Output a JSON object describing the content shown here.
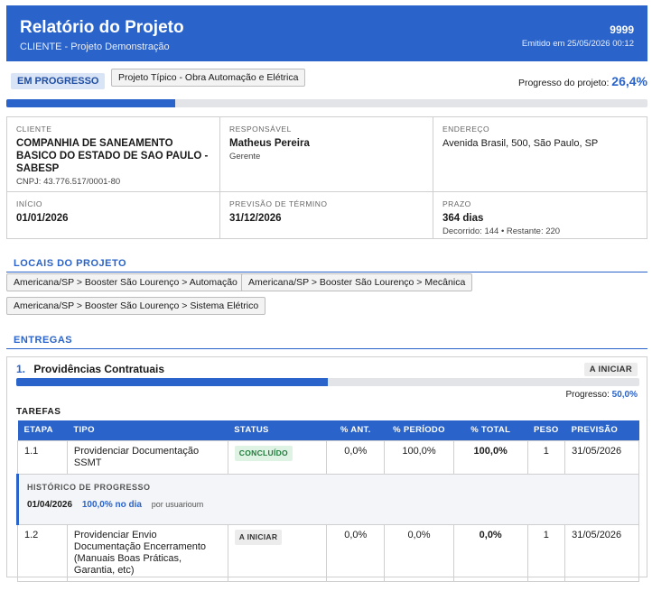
{
  "header": {
    "title": "Relatório do Projeto",
    "subtitle": "CLIENTE - Projeto Demonstração",
    "code": "9999",
    "emitted": "Emitido em 25/05/2026 00:12"
  },
  "status": {
    "badge": "EM PROGRESSO",
    "type_tag": "Projeto Típico - Obra Automação e Elétrica",
    "progress_label": "Progresso do projeto:",
    "progress_value": "26,4%",
    "progress_fraction": 0.264
  },
  "info": {
    "cliente": {
      "label": "CLIENTE",
      "name": "COMPANHIA DE SANEAMENTO BASICO DO ESTADO DE SAO PAULO - SABESP",
      "cnpj": "CNPJ: 43.776.517/0001-80"
    },
    "responsavel": {
      "label": "RESPONSÁVEL",
      "name": "Matheus Pereira",
      "role": "Gerente"
    },
    "endereco": {
      "label": "ENDEREÇO",
      "value": "Avenida Brasil, 500, São Paulo, SP"
    },
    "inicio": {
      "label": "INÍCIO",
      "value": "01/01/2026"
    },
    "previsao": {
      "label": "PREVISÃO DE TÉRMINO",
      "value": "31/12/2026"
    },
    "prazo": {
      "label": "PRAZO",
      "value": "364 dias",
      "detail": "Decorrido: 144  •  Restante: 220"
    }
  },
  "locais": {
    "title": "LOCAIS DO PROJETO",
    "items": [
      "Americana/SP > Booster São Lourenço > Automação",
      "Americana/SP > Booster São Lourenço > Mecânica",
      "Americana/SP > Booster São Lourenço > Sistema Elétrico"
    ]
  },
  "entregas": {
    "title": "ENTREGAS",
    "items": [
      {
        "num": "1.",
        "name": "Providências Contratuais",
        "badge": "A INICIAR",
        "progress_label": "Progresso:",
        "progress_value": "50,0%",
        "progress_fraction": 0.5,
        "tasks_title": "TAREFAS",
        "columns": [
          "ETAPA",
          "TIPO",
          "STATUS",
          "% ANT.",
          "% PERÍODO",
          "% TOTAL",
          "PESO",
          "PREVISÃO"
        ],
        "tasks": [
          {
            "etapa": "1.1",
            "tipo": "Providenciar Documentação SSMT",
            "status": "CONCLUÍDO",
            "ant": "0,0%",
            "periodo": "100,0%",
            "total": "100,0%",
            "peso": "1",
            "previsao": "31/05/2026"
          },
          {
            "etapa": "1.2",
            "tipo": "Providenciar Envio Documentação Encerramento (Manuais Boas Práticas, Garantia, etc)",
            "status": "A INICIAR",
            "ant": "0,0%",
            "periodo": "0,0%",
            "total": "0,0%",
            "peso": "1",
            "previsao": "31/05/2026"
          }
        ],
        "history": {
          "title": "HISTÓRICO DE PROGRESSO",
          "date": "01/04/2026",
          "progress": "100,0% no dia",
          "user": "por usuarioum"
        }
      }
    ]
  },
  "colors": {
    "primary": "#2a63c9",
    "bar_bg": "#e2e4e8",
    "done_bg": "#dff3e4",
    "done_text": "#1f7a3a"
  }
}
